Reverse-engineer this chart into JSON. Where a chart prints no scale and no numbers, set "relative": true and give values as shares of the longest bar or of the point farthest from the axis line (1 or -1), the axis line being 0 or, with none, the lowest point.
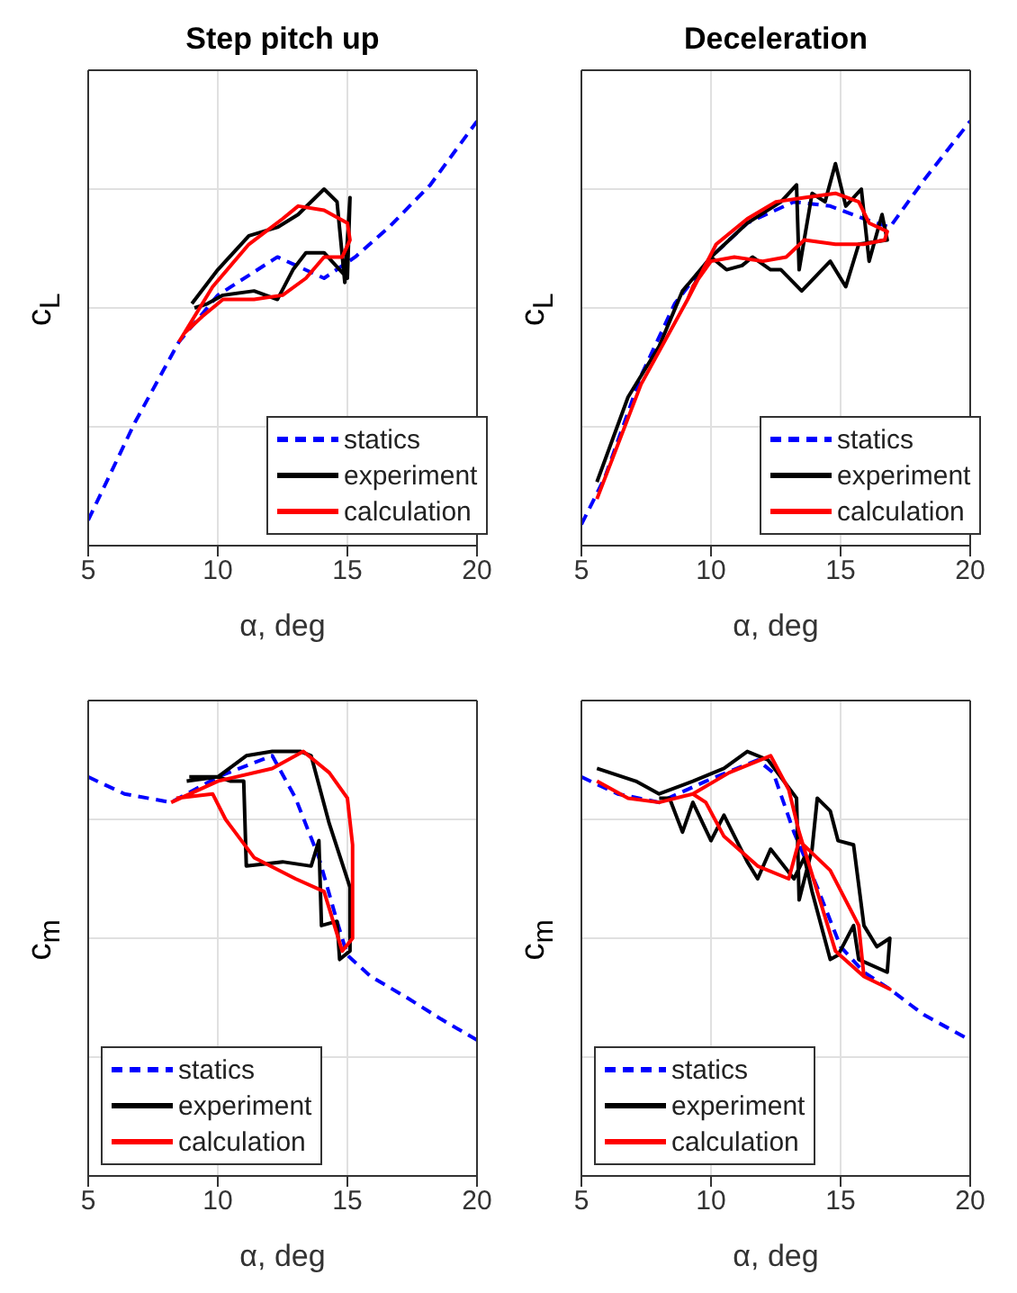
{
  "chart_data": [
    {
      "type": "line",
      "title": "Step pitch up",
      "xlabel": "α, deg",
      "ylabel": "c$_{L}$",
      "relative": true,
      "xlim": [
        5,
        20
      ],
      "xticks": [
        5,
        10,
        15,
        20
      ],
      "grid": true,
      "legend": "bottom right",
      "series": [
        {
          "name": "statics",
          "color": "#0000ff",
          "line_style": "dashed",
          "x": [
            5,
            6.8,
            8.5,
            10,
            12.3,
            14.1,
            15.3,
            16.6,
            18.2,
            20
          ],
          "values": [
            0.06,
            0.29,
            0.48,
            0.59,
            0.68,
            0.63,
            0.68,
            0.75,
            0.85,
            1
          ]
        },
        {
          "name": "experiment",
          "color": "#000000",
          "x": [
            9,
            10,
            11.2,
            12.3,
            13.1,
            14.1,
            14.6,
            14.9,
            15.1,
            15,
            14.1,
            13.4,
            12.9,
            12.3,
            11.4,
            10.2,
            9.6,
            9.1
          ],
          "values": [
            0.57,
            0.65,
            0.73,
            0.75,
            0.78,
            0.84,
            0.81,
            0.62,
            0.82,
            0.63,
            0.69,
            0.69,
            0.65,
            0.58,
            0.6,
            0.59,
            0.57,
            0.56
          ]
        },
        {
          "name": "calculation",
          "color": "#ff0000",
          "x": [
            8.5,
            9.8,
            11.2,
            12.5,
            13.1,
            14.1,
            15,
            15.1,
            14.8,
            14.1,
            13.4,
            12.5,
            11.4,
            10.2,
            9.4,
            8.7
          ],
          "values": [
            0.48,
            0.61,
            0.71,
            0.77,
            0.8,
            0.79,
            0.76,
            0.72,
            0.68,
            0.68,
            0.63,
            0.59,
            0.58,
            0.58,
            0.54,
            0.5
          ]
        }
      ]
    },
    {
      "type": "line",
      "title": "Deceleration",
      "xlabel": "α, deg",
      "ylabel": "c$_{L}$",
      "relative": true,
      "xlim": [
        5,
        20
      ],
      "xticks": [
        5,
        10,
        15,
        20
      ],
      "grid": true,
      "legend": "bottom right",
      "series": [
        {
          "name": "statics",
          "color": "#0000ff",
          "line_style": "dashed",
          "x": [
            5,
            5.9,
            7.3,
            8.6,
            10,
            11.4,
            13.2,
            14.6,
            15.9,
            16.9,
            18.2,
            20
          ],
          "values": [
            0.05,
            0.16,
            0.4,
            0.57,
            0.68,
            0.76,
            0.81,
            0.8,
            0.77,
            0.75,
            0.86,
            1
          ]
        },
        {
          "name": "experiment",
          "color": "#000000",
          "x": [
            5.6,
            6.8,
            8,
            8.9,
            10,
            11.4,
            12.7,
            13.3,
            13.4,
            13.9,
            14.4,
            14.8,
            15.2,
            15.8,
            16.1,
            16.6,
            16.8,
            15.7,
            15.2,
            14.6,
            13.5,
            12.7,
            12.3,
            11.6,
            11.2,
            10.6,
            10,
            9.3
          ],
          "values": [
            0.15,
            0.35,
            0.47,
            0.6,
            0.68,
            0.76,
            0.81,
            0.85,
            0.65,
            0.83,
            0.81,
            0.9,
            0.8,
            0.84,
            0.67,
            0.78,
            0.72,
            0.71,
            0.61,
            0.67,
            0.6,
            0.65,
            0.65,
            0.68,
            0.66,
            0.65,
            0.68,
            0.61
          ]
        },
        {
          "name": "calculation",
          "color": "#ff0000",
          "x": [
            5.6,
            7.3,
            9.1,
            10.2,
            11.4,
            12.5,
            13.6,
            14.8,
            15.7,
            16.1,
            16.8,
            16.7,
            15.9,
            14.8,
            13.6,
            12.9,
            12,
            10.9,
            10,
            9.3,
            9.1
          ],
          "values": [
            0.11,
            0.38,
            0.58,
            0.71,
            0.77,
            0.81,
            0.82,
            0.83,
            0.81,
            0.76,
            0.74,
            0.72,
            0.71,
            0.71,
            0.72,
            0.68,
            0.67,
            0.68,
            0.67,
            0.61,
            0.58
          ]
        }
      ]
    },
    {
      "type": "line",
      "xlabel": "α, deg",
      "ylabel": "c$_{m}$",
      "relative": true,
      "xlim": [
        5,
        20
      ],
      "xticks": [
        5,
        10,
        15,
        20
      ],
      "grid": true,
      "legend": "bottom left",
      "series": [
        {
          "name": "statics",
          "color": "#0000ff",
          "line_style": "dashed",
          "x": [
            5,
            6.4,
            8.2,
            10,
            12.1,
            13,
            13.9,
            14.6,
            15,
            15.9,
            17.3,
            18.6,
            20
          ],
          "values": [
            0.94,
            0.9,
            0.88,
            0.94,
            0.99,
            0.89,
            0.75,
            0.6,
            0.52,
            0.47,
            0.42,
            0.37,
            0.32
          ]
        },
        {
          "name": "experiment",
          "color": "#000000",
          "x": [
            8.8,
            10,
            11.1,
            12.1,
            13.2,
            13.6,
            14.3,
            15.1,
            15.1,
            14.7,
            14.6,
            14,
            13.9,
            13.6,
            12.5,
            11.1,
            11,
            10.5,
            10,
            8.9
          ],
          "values": [
            0.93,
            0.94,
            0.99,
            1,
            1,
            0.99,
            0.83,
            0.68,
            0.53,
            0.51,
            0.6,
            0.59,
            0.79,
            0.73,
            0.74,
            0.73,
            0.93,
            0.93,
            0.94,
            0.94
          ]
        },
        {
          "name": "calculation",
          "color": "#ff0000",
          "x": [
            8.2,
            10,
            12.1,
            13.3,
            14.3,
            15,
            15.2,
            15.2,
            14.8,
            14.5,
            14.1,
            13,
            11.4,
            10.3,
            9.8,
            8.4
          ],
          "values": [
            0.88,
            0.93,
            0.96,
            1,
            0.95,
            0.89,
            0.78,
            0.56,
            0.53,
            0.59,
            0.67,
            0.7,
            0.75,
            0.84,
            0.9,
            0.89
          ]
        }
      ]
    },
    {
      "type": "line",
      "xlabel": "α, deg",
      "ylabel": "c$_{m}$",
      "relative": true,
      "xlim": [
        5,
        20
      ],
      "xticks": [
        5,
        10,
        15,
        20
      ],
      "grid": true,
      "legend": "bottom left",
      "series": [
        {
          "name": "statics",
          "color": "#0000ff",
          "line_style": "dashed",
          "x": [
            5,
            6.4,
            8,
            9.8,
            11.8,
            12.4,
            13.2,
            14.1,
            15,
            15.9,
            16.9,
            18.2,
            20
          ],
          "values": [
            0.94,
            0.9,
            0.88,
            0.93,
            0.98,
            0.95,
            0.81,
            0.68,
            0.54,
            0.48,
            0.44,
            0.38,
            0.32
          ]
        },
        {
          "name": "experiment",
          "color": "#000000",
          "x": [
            5.6,
            7.1,
            8,
            9.3,
            10.5,
            11.4,
            12.2,
            13.3,
            13.4,
            13.9,
            14.1,
            14.6,
            14.9,
            15.5,
            15.9,
            16.4,
            16.9,
            16.8,
            15.7,
            15.5,
            14.9,
            14.6,
            13.9,
            13.6,
            13.2,
            12.3,
            11.8,
            11.4,
            10.5,
            10,
            9.3,
            8.9,
            8.4,
            8
          ],
          "values": [
            0.96,
            0.93,
            0.9,
            0.93,
            0.96,
            1,
            0.98,
            0.89,
            0.65,
            0.77,
            0.89,
            0.86,
            0.79,
            0.78,
            0.59,
            0.54,
            0.56,
            0.48,
            0.51,
            0.59,
            0.52,
            0.51,
            0.67,
            0.75,
            0.7,
            0.77,
            0.7,
            0.74,
            0.85,
            0.79,
            0.88,
            0.81,
            0.89,
            0.89
          ]
        },
        {
          "name": "calculation",
          "color": "#ff0000",
          "x": [
            5.6,
            6.8,
            8,
            9.3,
            10.7,
            12.3,
            13,
            13.4,
            14.1,
            14.8,
            15.9,
            16.9,
            15.9,
            15.7,
            14.6,
            13.4,
            13,
            11.8,
            10.5,
            9.8,
            9.3
          ],
          "values": [
            0.93,
            0.89,
            0.88,
            0.9,
            0.95,
            0.99,
            0.91,
            0.81,
            0.67,
            0.53,
            0.47,
            0.44,
            0.47,
            0.59,
            0.72,
            0.79,
            0.7,
            0.73,
            0.8,
            0.88,
            0.9
          ]
        }
      ]
    }
  ]
}
